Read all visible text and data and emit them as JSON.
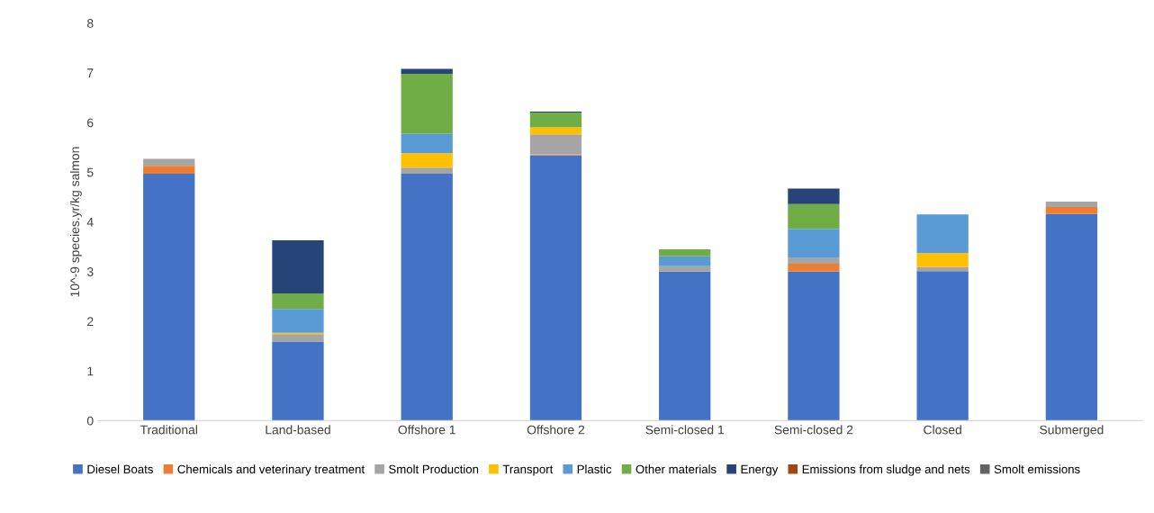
{
  "chart_data": {
    "type": "bar",
    "stacked": true,
    "ylabel": "10^-9 species.yr/kg salmon",
    "categories": [
      "Traditional",
      "Land-based",
      "Offshore 1",
      "Offshore 2",
      "Semi-closed 1",
      "Semi-closed 2",
      "Closed",
      "Submerged"
    ],
    "ylim": [
      0,
      8
    ],
    "yticks": [
      0,
      1,
      2,
      3,
      4,
      5,
      6,
      7,
      8
    ],
    "grid": false,
    "legend": "bottom",
    "series": [
      {
        "name": "Diesel Boats",
        "color": "#4472c4",
        "values": [
          4.97,
          1.59,
          4.97,
          5.34,
          3.0,
          3.0,
          3.01,
          4.16
        ]
      },
      {
        "name": "Chemicals and veterinary treatment",
        "color": "#ed7d31",
        "values": [
          0.16,
          0,
          0,
          0.02,
          0,
          0.16,
          0,
          0.14
        ]
      },
      {
        "name": "Smolt Production",
        "color": "#a5a5a5",
        "values": [
          0.14,
          0.15,
          0.12,
          0.4,
          0.11,
          0.11,
          0.08,
          0.11
        ]
      },
      {
        "name": "Transport",
        "color": "#ffc000",
        "values": [
          0,
          0.03,
          0.29,
          0.14,
          0,
          0,
          0.28,
          0
        ]
      },
      {
        "name": "Plastic",
        "color": "#5b9bd5",
        "values": [
          0,
          0.48,
          0.39,
          0,
          0.2,
          0.59,
          0.78,
          0
        ]
      },
      {
        "name": "Other materials",
        "color": "#70ad47",
        "values": [
          0,
          0.31,
          1.21,
          0.3,
          0.14,
          0.5,
          0,
          0
        ]
      },
      {
        "name": "Energy",
        "color": "#264478",
        "values": [
          0,
          1.07,
          0.1,
          0.02,
          0,
          0.31,
          0,
          0
        ]
      },
      {
        "name": "Emissions from sludge and nets",
        "color": "#9e480e",
        "values": [
          0,
          0,
          0,
          0,
          0,
          0,
          0,
          0
        ]
      },
      {
        "name": "Smolt emissions",
        "color": "#636363",
        "values": [
          0,
          0,
          0,
          0,
          0,
          0,
          0,
          0
        ]
      }
    ]
  }
}
